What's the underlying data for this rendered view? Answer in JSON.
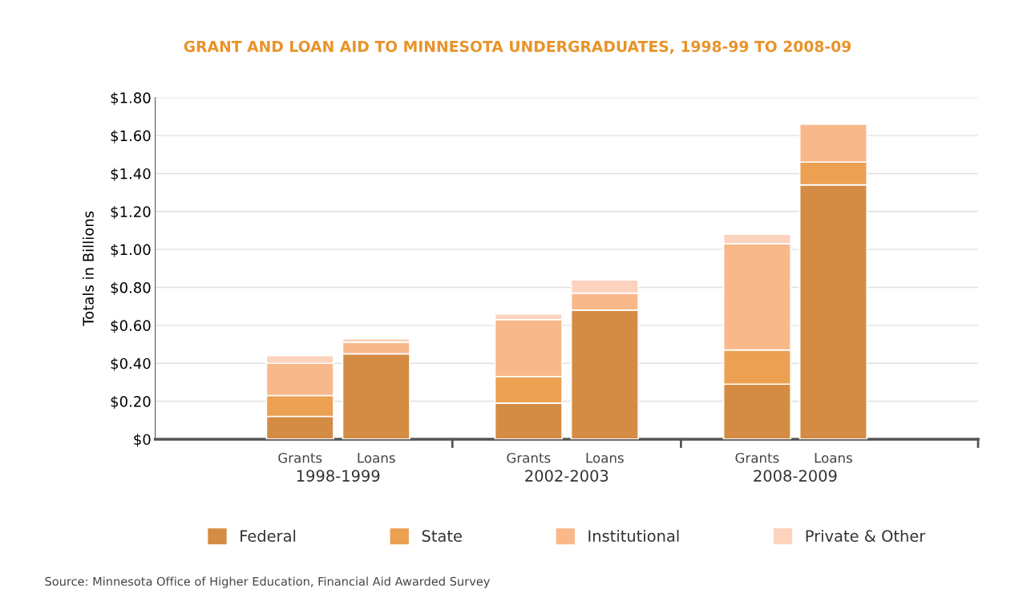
{
  "chart_data": {
    "type": "bar",
    "stacked": true,
    "title": "GRANT AND LOAN AID TO MINNESOTA UNDERGRADUATES, 1998-99 TO 2008-09",
    "ylabel": "Totals in Billions",
    "categories": [
      "Grants",
      "Loans",
      "Grants",
      "Loans",
      "Grants",
      "Loans"
    ],
    "series": [
      {
        "name": "Federal",
        "color": "#d48c44",
        "values": [
          0.12,
          0.45,
          0.19,
          0.68,
          0.29,
          1.34
        ]
      },
      {
        "name": "State",
        "color": "#eca052",
        "values": [
          0.11,
          0,
          0.14,
          0,
          0.18,
          0.12
        ]
      },
      {
        "name": "Institutional",
        "color": "#f9b88a",
        "values": [
          0.17,
          0.06,
          0.3,
          0.09,
          0.56,
          0.2
        ]
      },
      {
        "name": "Private & Other",
        "color": "#fdd3bd",
        "values": [
          0.04,
          0.02,
          0.03,
          0.07,
          0.05,
          0
        ]
      }
    ],
    "ylim": [
      0,
      1.8
    ],
    "yticks": [
      {
        "value": 0,
        "label": "$0"
      },
      {
        "value": 0.2,
        "label": "$0.20"
      },
      {
        "value": 0.4,
        "label": "$0.40"
      },
      {
        "value": 0.6,
        "label": "$0.60"
      },
      {
        "value": 0.8,
        "label": "$0.80"
      },
      {
        "value": 1.0,
        "label": "$1.00"
      },
      {
        "value": 1.2,
        "label": "$1.20"
      },
      {
        "value": 1.4,
        "label": "$1.40"
      },
      {
        "value": 1.6,
        "label": "$1.60"
      },
      {
        "value": 1.8,
        "label": "$1.80"
      }
    ],
    "grid": "y",
    "legend": "bottom",
    "annotations": [
      "1998-1999",
      "2002-2003",
      "2008-2009",
      "Source: Minnesota Office of Higher Education, Financial Aid Awarded Survey"
    ]
  }
}
